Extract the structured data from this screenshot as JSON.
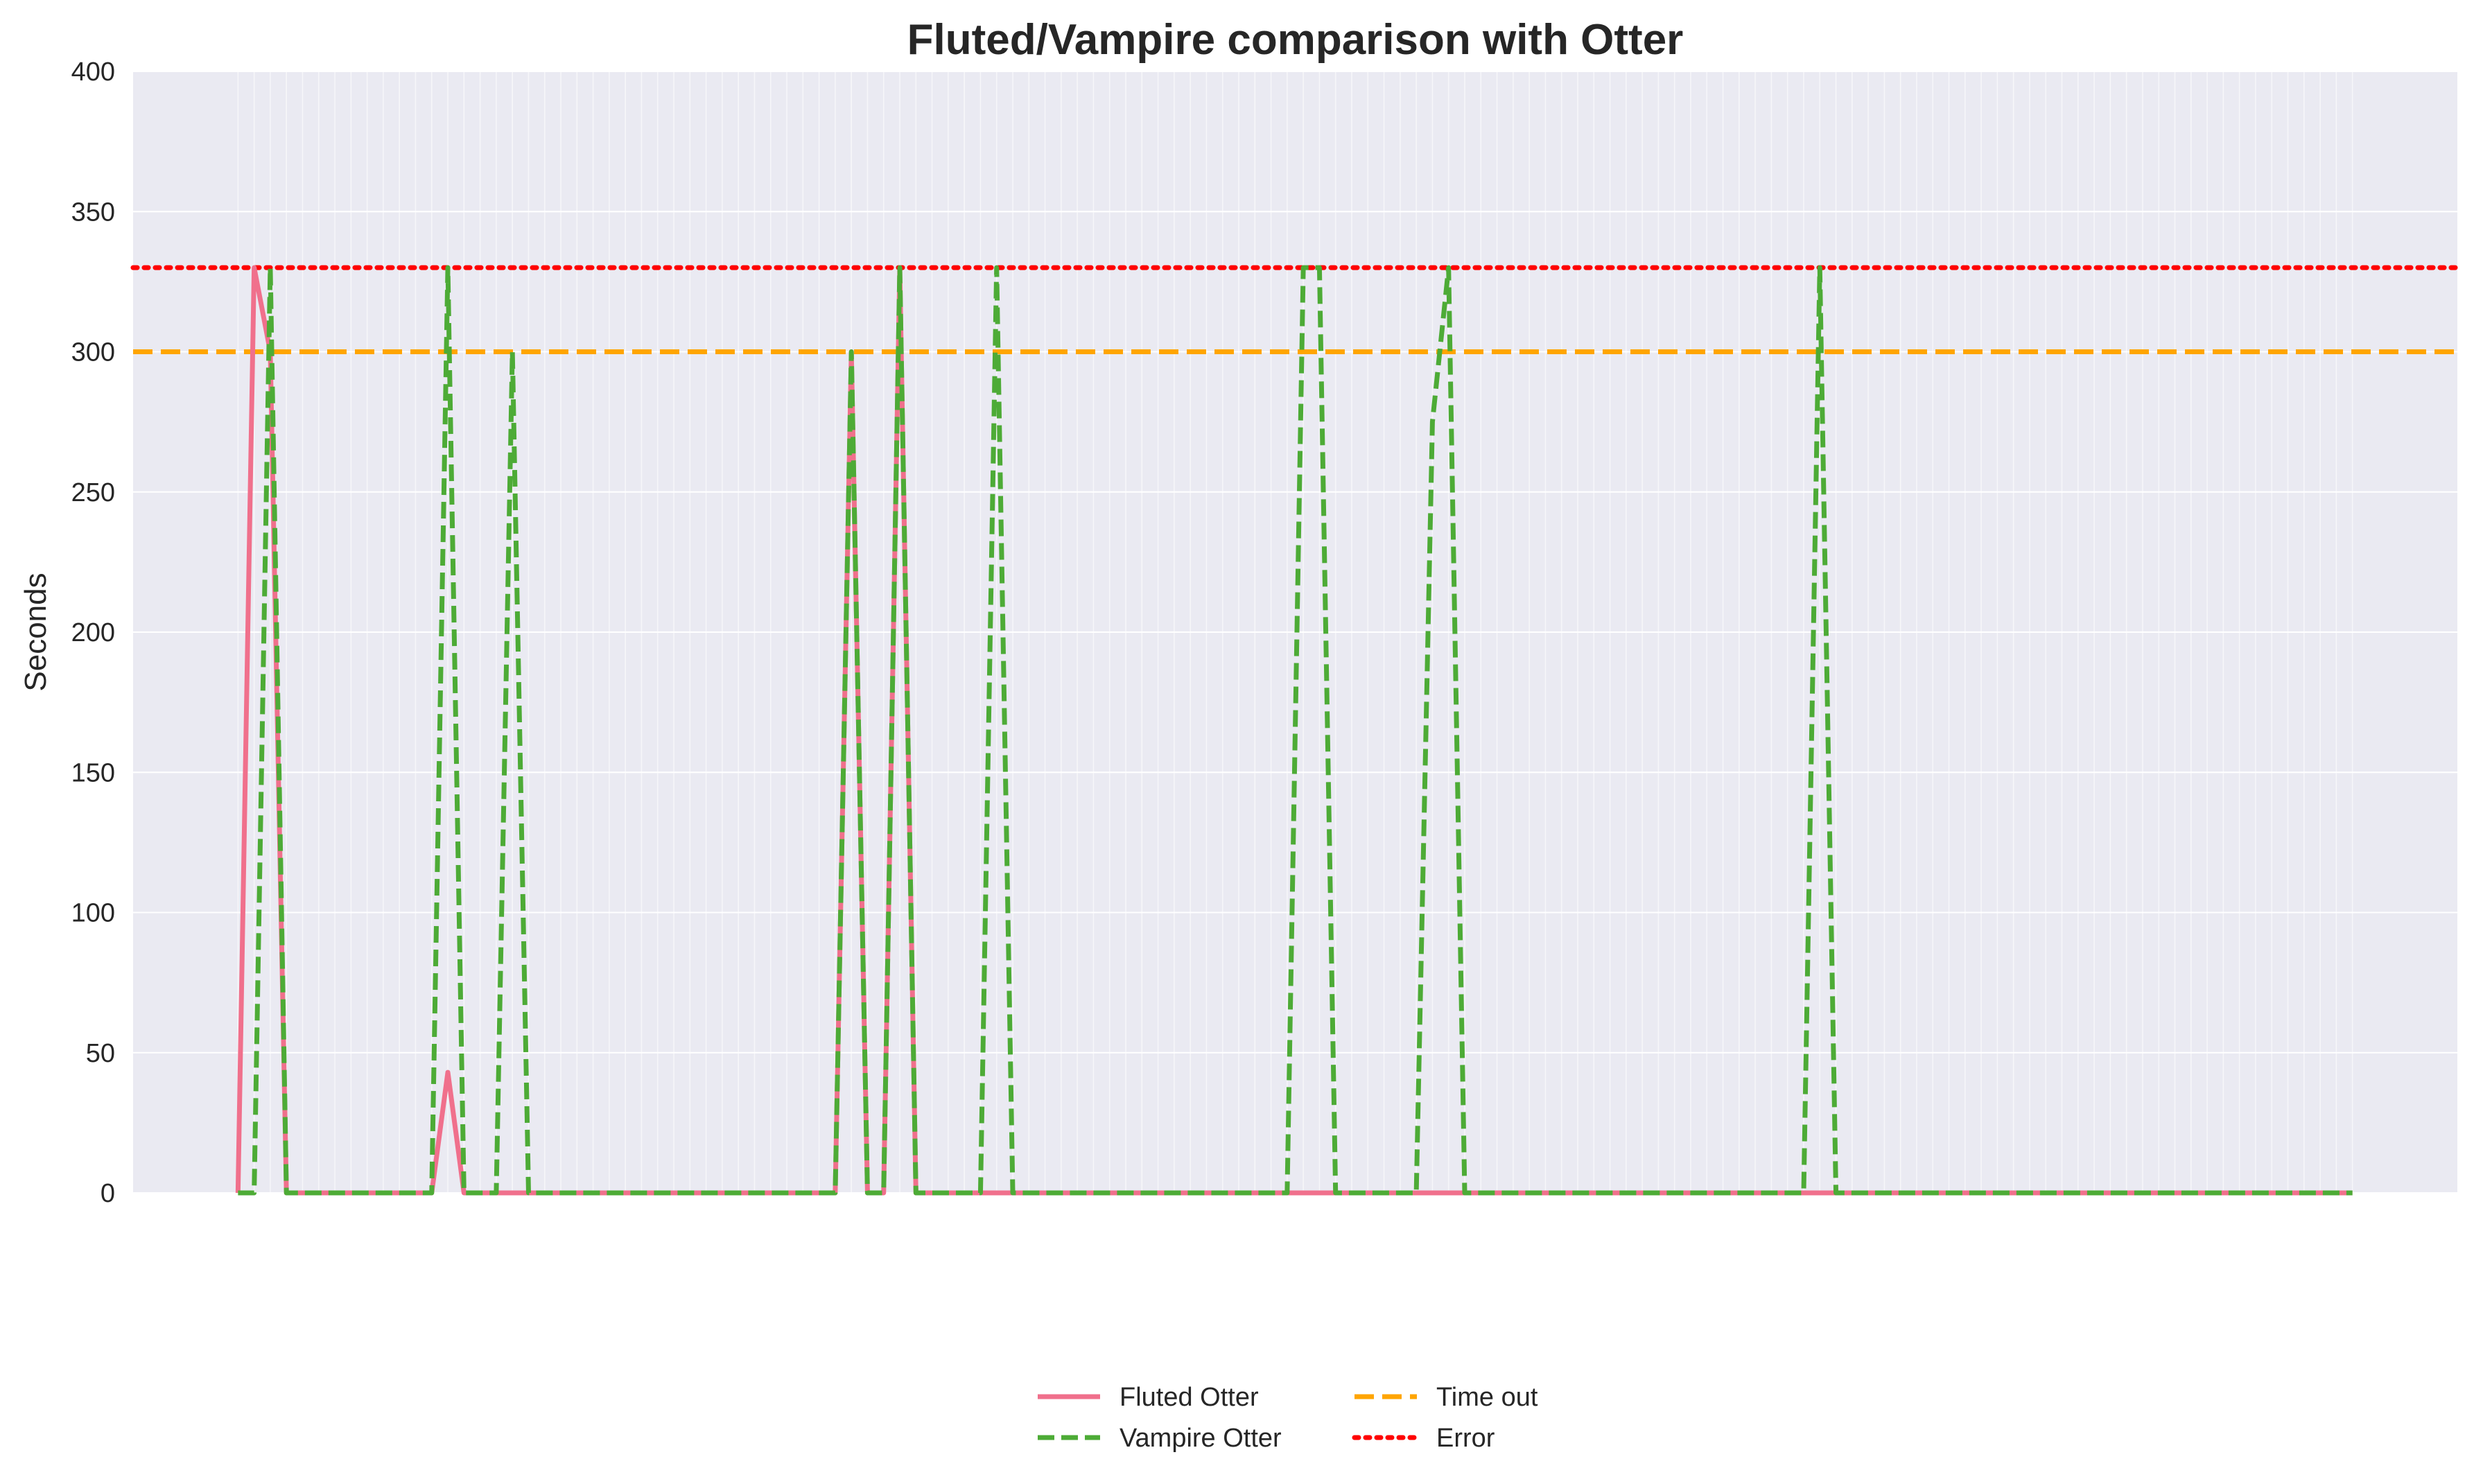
{
  "chart_data": {
    "type": "line",
    "title": "Fluted/Vampire comparison with Otter",
    "xlabel": "",
    "ylabel": "Seconds",
    "ylim": [
      0,
      400
    ],
    "yticks": [
      0,
      50,
      100,
      150,
      200,
      250,
      300,
      350,
      400
    ],
    "xlim": [
      -6.5,
      137.5
    ],
    "grid": true,
    "background_color": "#eaeaf2",
    "legend_position": "bottom-center",
    "x": [
      0,
      1,
      2,
      3,
      4,
      5,
      6,
      7,
      8,
      9,
      10,
      11,
      12,
      13,
      14,
      15,
      16,
      17,
      18,
      19,
      20,
      21,
      22,
      23,
      24,
      25,
      26,
      27,
      28,
      29,
      30,
      31,
      32,
      33,
      34,
      35,
      36,
      37,
      38,
      39,
      40,
      41,
      42,
      43,
      44,
      45,
      46,
      47,
      48,
      49,
      50,
      51,
      52,
      53,
      54,
      55,
      56,
      57,
      58,
      59,
      60,
      61,
      62,
      63,
      64,
      65,
      66,
      67,
      68,
      69,
      70,
      71,
      72,
      73,
      74,
      75,
      76,
      77,
      78,
      79,
      80,
      81,
      82,
      83,
      84,
      85,
      86,
      87,
      88,
      89,
      90,
      91,
      92,
      93,
      94,
      95,
      96,
      97,
      98,
      99,
      100,
      101,
      102,
      103,
      104,
      105,
      106,
      107,
      108,
      109,
      110,
      111,
      112,
      113,
      114,
      115,
      116,
      117,
      118,
      119,
      120,
      121,
      122,
      123,
      124,
      125,
      126,
      127,
      128,
      129,
      130,
      131
    ],
    "series": [
      {
        "name": "Fluted Otter",
        "color": "#f0708c",
        "style": "solid",
        "values": [
          0,
          330,
          300,
          0,
          0,
          0,
          0,
          0,
          0,
          0,
          0,
          0,
          0,
          43,
          0,
          0,
          0,
          0,
          0,
          0,
          0,
          0,
          0,
          0,
          0,
          0,
          0,
          0,
          0,
          0,
          0,
          0,
          0,
          0,
          0,
          0,
          0,
          0,
          300,
          0,
          0,
          330,
          0,
          0,
          0,
          0,
          0,
          0,
          0,
          0,
          0,
          0,
          0,
          0,
          0,
          0,
          0,
          0,
          0,
          0,
          0,
          0,
          0,
          0,
          0,
          0,
          0,
          0,
          0,
          0,
          0,
          0,
          0,
          0,
          0,
          0,
          0,
          0,
          0,
          0,
          0,
          0,
          0,
          0,
          0,
          0,
          0,
          0,
          0,
          0,
          0,
          0,
          0,
          0,
          0,
          0,
          0,
          0,
          0,
          0,
          0,
          0,
          0,
          0,
          0,
          0,
          0,
          0,
          0,
          0,
          0,
          0,
          0,
          0,
          0,
          0,
          0,
          0,
          0,
          0,
          0,
          0,
          0,
          0,
          0,
          0,
          0,
          0,
          0,
          0,
          0,
          0
        ]
      },
      {
        "name": "Vampire Otter",
        "color": "#4dab36",
        "style": "dashed",
        "values": [
          0,
          0,
          330,
          0,
          0,
          0,
          0,
          0,
          0,
          0,
          0,
          0,
          0,
          330,
          0,
          0,
          0,
          300,
          0,
          0,
          0,
          0,
          0,
          0,
          0,
          0,
          0,
          0,
          0,
          0,
          0,
          0,
          0,
          0,
          0,
          0,
          0,
          0,
          300,
          0,
          0,
          330,
          0,
          0,
          0,
          0,
          0,
          330,
          0,
          0,
          0,
          0,
          0,
          0,
          0,
          0,
          0,
          0,
          0,
          0,
          0,
          0,
          0,
          0,
          0,
          0,
          330,
          330,
          0,
          0,
          0,
          0,
          0,
          0,
          275,
          330,
          0,
          0,
          0,
          0,
          0,
          0,
          0,
          0,
          0,
          0,
          0,
          0,
          0,
          0,
          0,
          0,
          0,
          0,
          0,
          0,
          0,
          0,
          330,
          0,
          0,
          0,
          0,
          0,
          0,
          0,
          0,
          0,
          0,
          0,
          0,
          0,
          0,
          0,
          0,
          0,
          0,
          0,
          0,
          0,
          0,
          0,
          0,
          0,
          0,
          0,
          0,
          0,
          0,
          0,
          0,
          0
        ]
      }
    ],
    "reference_lines": [
      {
        "name": "Time out",
        "value": 300,
        "color": "#ffa500",
        "style": "dashed"
      },
      {
        "name": "Error",
        "value": 330,
        "color": "#ff0000",
        "style": "dotted"
      }
    ],
    "legend": {
      "columns": [
        [
          "Fluted Otter",
          "Vampire Otter"
        ],
        [
          "Time out",
          "Error"
        ]
      ]
    }
  }
}
